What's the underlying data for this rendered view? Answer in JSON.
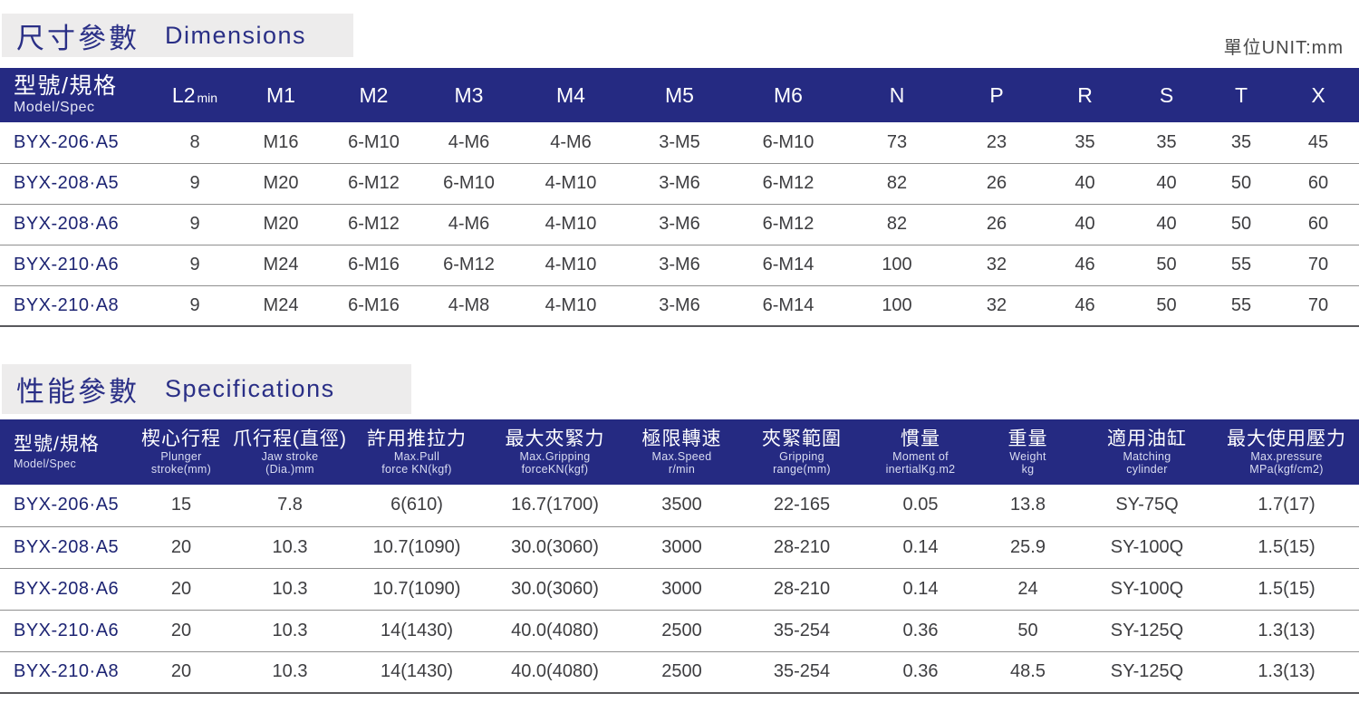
{
  "unit_label": "單位UNIT:mm",
  "sections": [
    {
      "id": "dimensions",
      "title_zh": "尺寸參數",
      "title_en": "Dimensions",
      "table": {
        "model_header": {
          "zh": "型號/規格",
          "en": "Model/Spec"
        },
        "columns": [
          {
            "main": "L2",
            "sub": "min"
          },
          "M1",
          "M2",
          "M3",
          "M4",
          "M5",
          "M6",
          "N",
          "P",
          "R",
          "S",
          "T",
          "X"
        ],
        "rows": [
          {
            "model": "BYX-206·A5",
            "values": [
              "8",
              "M16",
              "6-M10",
              "4-M6",
              "4-M6",
              "3-M5",
              "6-M10",
              "73",
              "23",
              "35",
              "35",
              "35",
              "45"
            ]
          },
          {
            "model": "BYX-208·A5",
            "values": [
              "9",
              "M20",
              "6-M12",
              "6-M10",
              "4-M10",
              "3-M6",
              "6-M12",
              "82",
              "26",
              "40",
              "40",
              "50",
              "60"
            ]
          },
          {
            "model": "BYX-208·A6",
            "values": [
              "9",
              "M20",
              "6-M12",
              "4-M6",
              "4-M10",
              "3-M6",
              "6-M12",
              "82",
              "26",
              "40",
              "40",
              "50",
              "60"
            ]
          },
          {
            "model": "BYX-210·A6",
            "values": [
              "9",
              "M24",
              "6-M16",
              "6-M12",
              "4-M10",
              "3-M6",
              "6-M14",
              "100",
              "32",
              "46",
              "50",
              "55",
              "70"
            ]
          },
          {
            "model": "BYX-210·A8",
            "values": [
              "9",
              "M24",
              "6-M16",
              "4-M8",
              "4-M10",
              "3-M6",
              "6-M14",
              "100",
              "32",
              "46",
              "50",
              "55",
              "70"
            ]
          }
        ]
      }
    },
    {
      "id": "specifications",
      "title_zh": "性能參數",
      "title_en": "Specifications",
      "table": {
        "model_header": {
          "zh": "型號/規格",
          "en": "Model/Spec"
        },
        "columns": [
          {
            "zh": "楔心行程",
            "en": [
              "Plunger",
              "stroke(mm)"
            ]
          },
          {
            "zh": "爪行程(直徑)",
            "en": [
              "Jaw stroke",
              "(Dia.)mm"
            ]
          },
          {
            "zh": "許用推拉力",
            "en": [
              "Max.Pull",
              "force KN(kgf)"
            ]
          },
          {
            "zh": "最大夾緊力",
            "en": [
              "Max.Gripping",
              "forceKN(kgf)"
            ]
          },
          {
            "zh": "極限轉速",
            "en": [
              "Max.Speed",
              "r/min"
            ]
          },
          {
            "zh": "夾緊範圍",
            "en": [
              "Gripping",
              "range(mm)"
            ]
          },
          {
            "zh": "慣量",
            "en": [
              "Moment of",
              "inertialKg.m2"
            ]
          },
          {
            "zh": "重量",
            "en": [
              "Weight",
              "kg"
            ]
          },
          {
            "zh": "適用油缸",
            "en": [
              "Matching",
              "cylinder"
            ]
          },
          {
            "zh": "最大使用壓力",
            "en": [
              "Max.pressure",
              "MPa(kgf/cm2)"
            ]
          }
        ],
        "rows": [
          {
            "model": "BYX-206·A5",
            "values": [
              "15",
              "7.8",
              "6(610)",
              "16.7(1700)",
              "3500",
              "22-165",
              "0.05",
              "13.8",
              "SY-75Q",
              "1.7(17)"
            ]
          },
          {
            "model": "BYX-208·A5",
            "values": [
              "20",
              "10.3",
              "10.7(1090)",
              "30.0(3060)",
              "3000",
              "28-210",
              "0.14",
              "25.9",
              "SY-100Q",
              "1.5(15)"
            ]
          },
          {
            "model": "BYX-208·A6",
            "values": [
              "20",
              "10.3",
              "10.7(1090)",
              "30.0(3060)",
              "3000",
              "28-210",
              "0.14",
              "24",
              "SY-100Q",
              "1.5(15)"
            ]
          },
          {
            "model": "BYX-210·A6",
            "values": [
              "20",
              "10.3",
              "14(1430)",
              "40.0(4080)",
              "2500",
              "35-254",
              "0.36",
              "50",
              "SY-125Q",
              "1.3(13)"
            ]
          },
          {
            "model": "BYX-210·A8",
            "values": [
              "20",
              "10.3",
              "14(1430)",
              "40.0(4080)",
              "2500",
              "35-254",
              "0.36",
              "48.5",
              "SY-125Q",
              "1.3(13)"
            ]
          }
        ]
      }
    }
  ],
  "colors": {
    "header_band": "#252a82",
    "model_text": "#1d2473",
    "value_text": "#3d3d40",
    "title_box_bg": "#edecec"
  }
}
